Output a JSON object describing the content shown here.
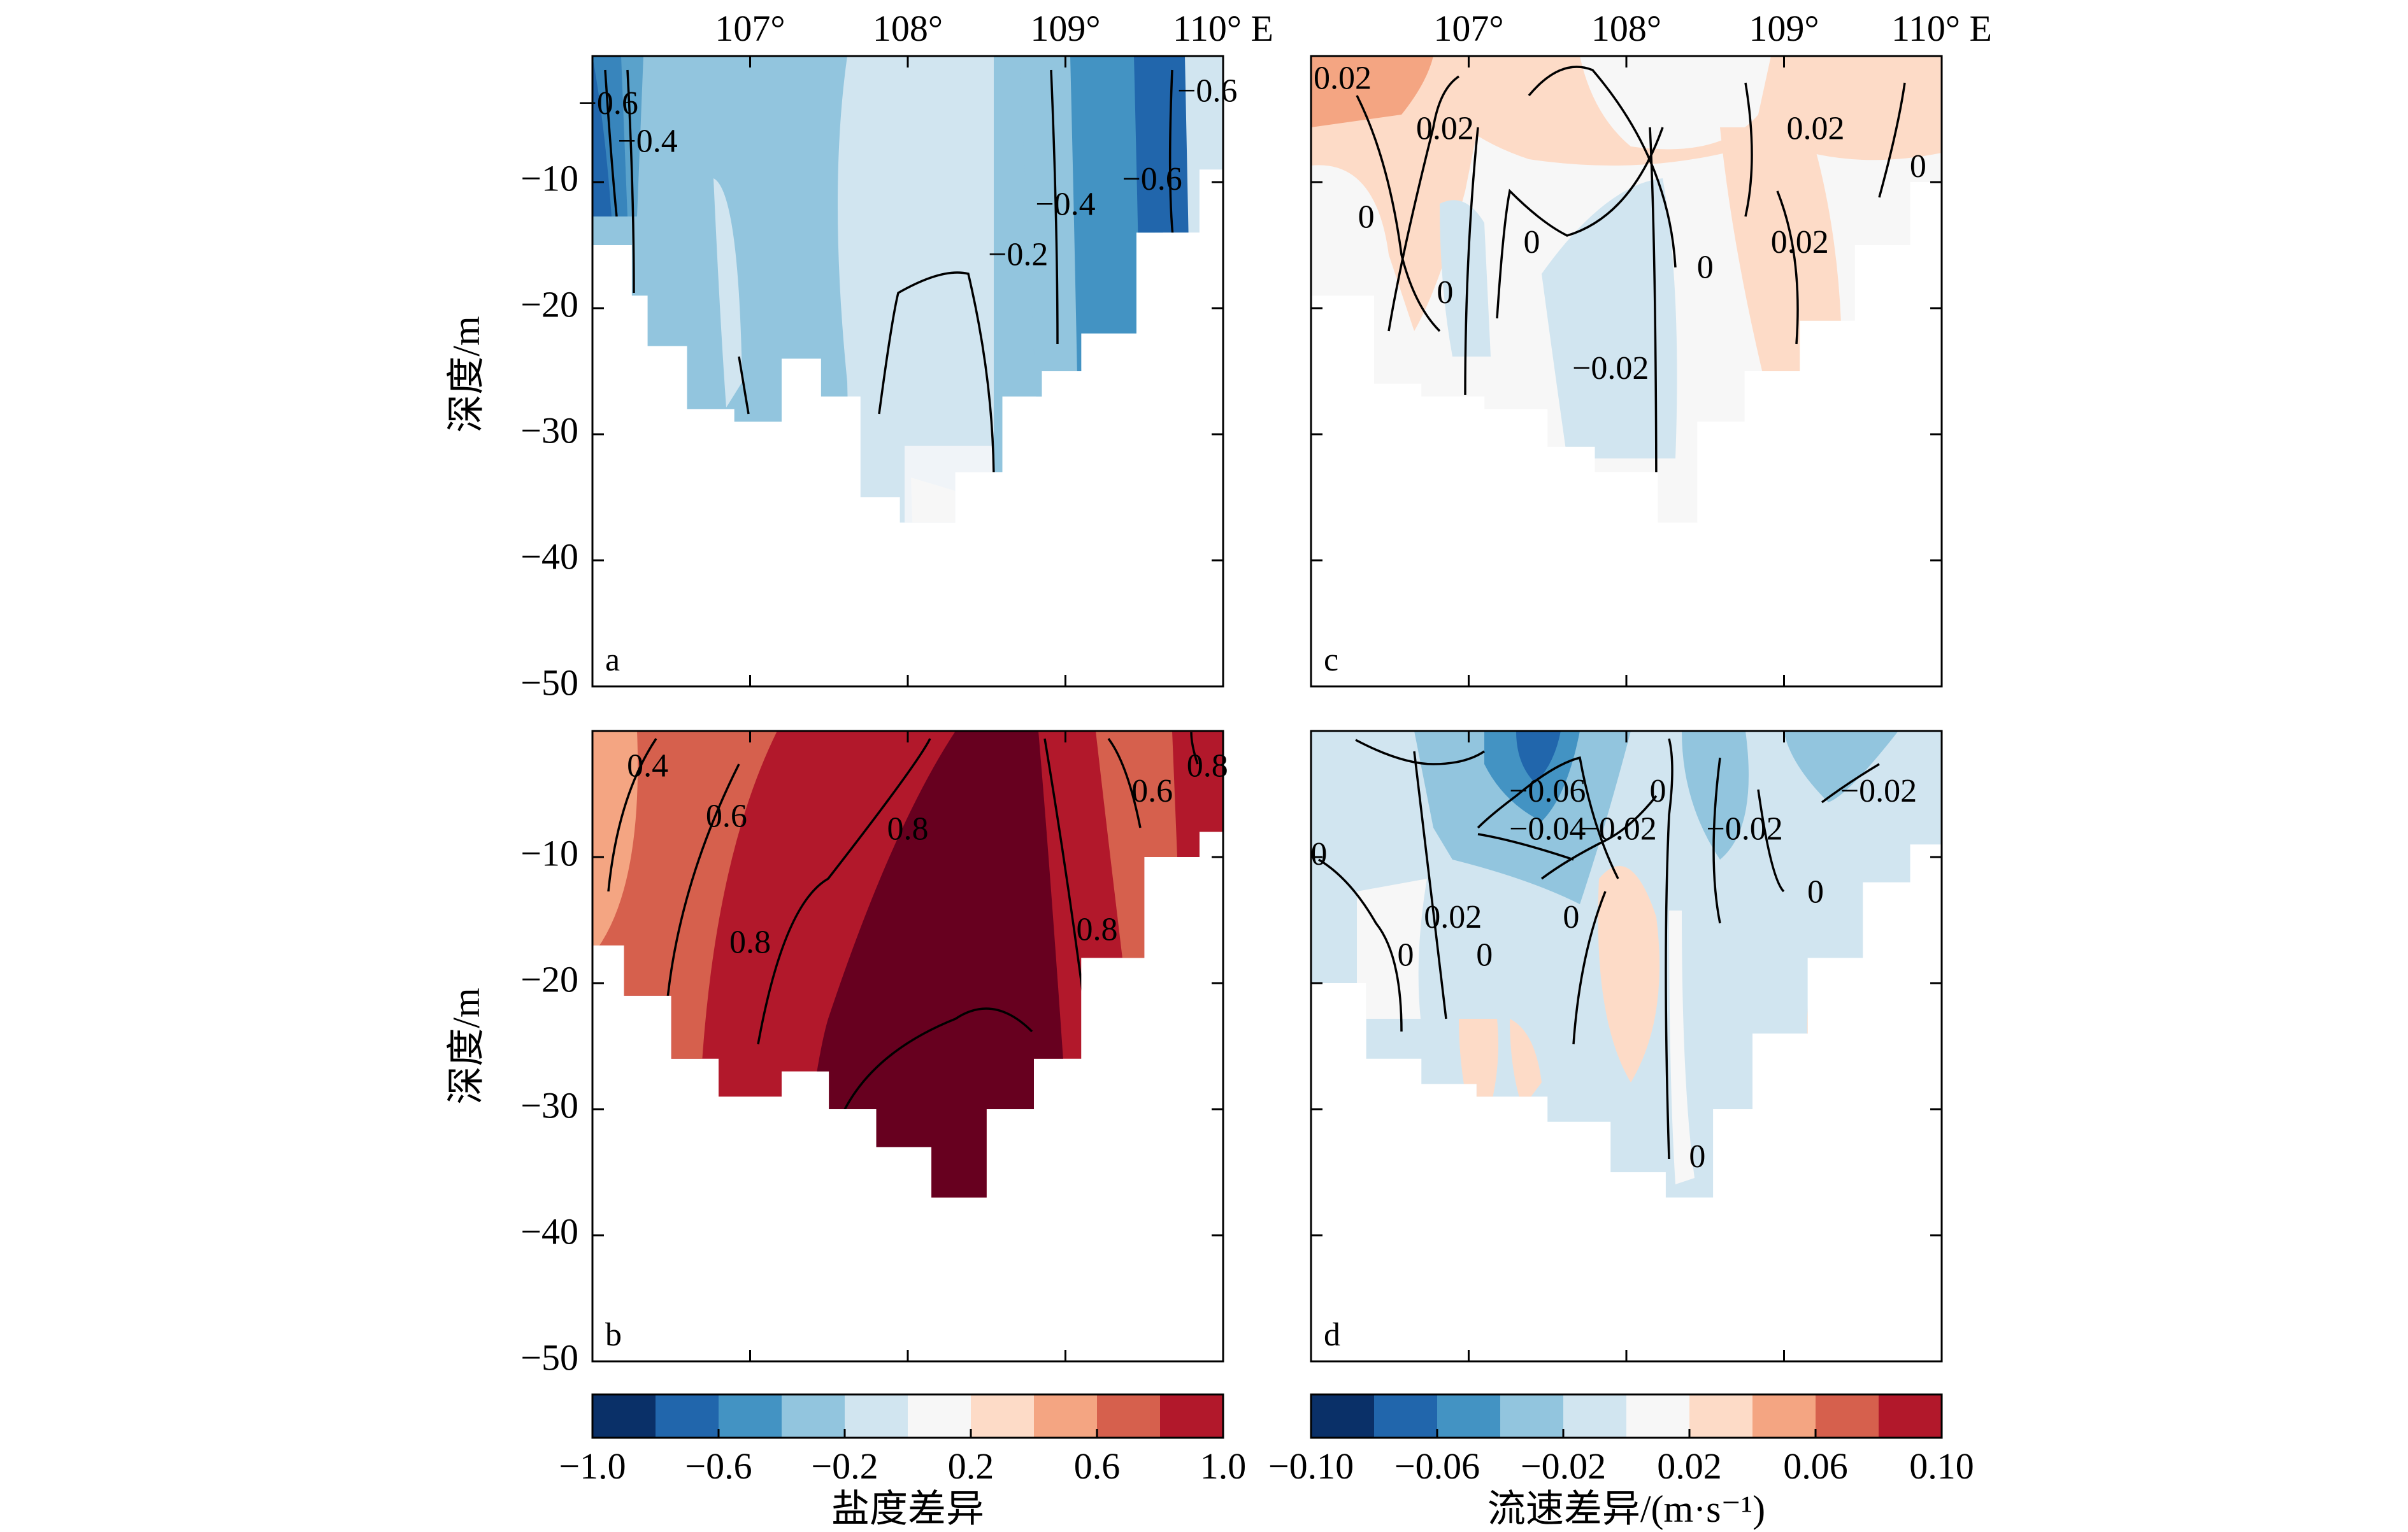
{
  "chart_data": [
    {
      "type": "heatmap",
      "panel": "a",
      "quantity": "salinity",
      "x_ticks": [
        "107°",
        "108°",
        "109°",
        "110° E"
      ],
      "y_ticks": [
        "−10",
        "−20",
        "−30",
        "−40",
        "−50"
      ],
      "ylabel": "深度/m",
      "ylim": [
        -50,
        0
      ],
      "bottom_depth": [
        [
          106.0,
          -11
        ],
        [
          106.25,
          -15
        ],
        [
          106.35,
          -19
        ],
        [
          106.6,
          -23
        ],
        [
          106.9,
          -28
        ],
        [
          107.2,
          -29
        ],
        [
          107.45,
          -24
        ],
        [
          107.7,
          -27
        ],
        [
          107.95,
          -35
        ],
        [
          108.3,
          -37
        ],
        [
          108.6,
          -33
        ],
        [
          108.85,
          -27
        ],
        [
          109.1,
          -25
        ],
        [
          109.45,
          -22
        ],
        [
          109.85,
          -14
        ],
        [
          110.0,
          -9
        ]
      ],
      "contour_labels": [
        {
          "text": "−0.6",
          "x": 106.1,
          "y": -4
        },
        {
          "text": "−0.4",
          "x": 106.35,
          "y": -7
        },
        {
          "text": "−0.2",
          "x": 108.7,
          "y": -16
        },
        {
          "text": "−0.4",
          "x": 109.0,
          "y": -12
        },
        {
          "text": "−0.6",
          "x": 109.55,
          "y": -10
        },
        {
          "text": "−0.6",
          "x": 109.9,
          "y": -3
        }
      ]
    },
    {
      "type": "heatmap",
      "panel": "b",
      "quantity": "salinity",
      "y_ticks": [
        "−10",
        "−20",
        "−30",
        "−40",
        "−50"
      ],
      "ylabel": "深度/m",
      "ylim": [
        -50,
        0
      ],
      "bottom_depth": [
        [
          106.0,
          -13
        ],
        [
          106.2,
          -17
        ],
        [
          106.5,
          -21
        ],
        [
          106.8,
          -26
        ],
        [
          107.2,
          -29
        ],
        [
          107.5,
          -27
        ],
        [
          107.8,
          -30
        ],
        [
          108.15,
          -33
        ],
        [
          108.5,
          -37
        ],
        [
          108.8,
          -30
        ],
        [
          109.1,
          -26
        ],
        [
          109.5,
          -18
        ],
        [
          109.85,
          -10
        ],
        [
          110.0,
          -8
        ]
      ],
      "contour_labels": [
        {
          "text": "0.4",
          "x": 106.35,
          "y": -3
        },
        {
          "text": "0.6",
          "x": 106.85,
          "y": -7
        },
        {
          "text": "0.8",
          "x": 108.0,
          "y": -8
        },
        {
          "text": "0.8",
          "x": 107.0,
          "y": -17
        },
        {
          "text": "0.8",
          "x": 109.2,
          "y": -16
        },
        {
          "text": "0.6",
          "x": 109.55,
          "y": -5
        },
        {
          "text": "0.8",
          "x": 109.9,
          "y": -3
        }
      ]
    },
    {
      "type": "heatmap",
      "panel": "c",
      "quantity": "velocity",
      "x_ticks": [
        "107°",
        "108°",
        "109°",
        "110° E"
      ],
      "ylim": [
        -50,
        0
      ],
      "bottom_depth": [
        [
          106.0,
          -14
        ],
        [
          106.4,
          -19
        ],
        [
          106.7,
          -26
        ],
        [
          107.1,
          -27
        ],
        [
          107.5,
          -28
        ],
        [
          107.8,
          -31
        ],
        [
          108.2,
          -33
        ],
        [
          108.45,
          -37
        ],
        [
          108.75,
          -29
        ],
        [
          109.1,
          -25
        ],
        [
          109.45,
          -21
        ],
        [
          109.8,
          -15
        ],
        [
          110.0,
          -10
        ]
      ],
      "contour_labels": [
        {
          "text": "0.02",
          "x": 106.2,
          "y": -2
        },
        {
          "text": "0.02",
          "x": 106.85,
          "y": -6
        },
        {
          "text": "0",
          "x": 106.35,
          "y": -13
        },
        {
          "text": "0",
          "x": 106.85,
          "y": -19
        },
        {
          "text": "0",
          "x": 107.4,
          "y": -15
        },
        {
          "text": "−0.02",
          "x": 107.9,
          "y": -25
        },
        {
          "text": "0",
          "x": 108.5,
          "y": -17
        },
        {
          "text": "0.02",
          "x": 109.2,
          "y": -6
        },
        {
          "text": "0.02",
          "x": 109.1,
          "y": -15
        },
        {
          "text": "0",
          "x": 109.85,
          "y": -9
        }
      ]
    },
    {
      "type": "heatmap",
      "panel": "d",
      "quantity": "velocity",
      "ylim": [
        -50,
        0
      ],
      "bottom_depth": [
        [
          106.0,
          -11
        ],
        [
          106.35,
          -20
        ],
        [
          106.7,
          -26
        ],
        [
          107.05,
          -28
        ],
        [
          107.5,
          -29
        ],
        [
          107.9,
          -31
        ],
        [
          108.25,
          -35
        ],
        [
          108.55,
          -37
        ],
        [
          108.8,
          -30
        ],
        [
          109.15,
          -24
        ],
        [
          109.5,
          -18
        ],
        [
          109.8,
          -12
        ],
        [
          110.0,
          -9
        ]
      ],
      "contour_labels": [
        {
          "text": "0",
          "x": 106.05,
          "y": -10
        },
        {
          "text": "−0.06",
          "x": 107.5,
          "y": -5
        },
        {
          "text": "−0.04",
          "x": 107.5,
          "y": -8
        },
        {
          "text": "−0.02",
          "x": 107.95,
          "y": -8
        },
        {
          "text": "0",
          "x": 108.2,
          "y": -5
        },
        {
          "text": "0.02",
          "x": 106.9,
          "y": -15
        },
        {
          "text": "0",
          "x": 106.6,
          "y": -18
        },
        {
          "text": "0",
          "x": 107.1,
          "y": -18
        },
        {
          "text": "0",
          "x": 107.65,
          "y": -15
        },
        {
          "text": "−0.02",
          "x": 108.75,
          "y": -8
        },
        {
          "text": "0",
          "x": 109.2,
          "y": -13
        },
        {
          "text": "−0.02",
          "x": 109.6,
          "y": -5
        },
        {
          "text": "0",
          "x": 108.45,
          "y": -34
        }
      ]
    }
  ],
  "panel_letters": {
    "a": "a",
    "b": "b",
    "c": "c",
    "d": "d"
  },
  "colorbars": {
    "salinity": {
      "ticks": [
        "−1.0",
        "−0.6",
        "−0.2",
        "0.2",
        "0.6",
        "1.0"
      ],
      "label": "盐度差异",
      "colors": [
        "#0a3068",
        "#2166ac",
        "#4393c3",
        "#92c5de",
        "#d1e5f0",
        "#f7f7f7",
        "#fddbc7",
        "#f4a582",
        "#d6604d",
        "#b2182b"
      ]
    },
    "velocity": {
      "ticks": [
        "−0.10",
        "−0.06",
        "−0.02",
        "0.02",
        "0.06",
        "0.10"
      ],
      "label": "流速差异/(m·s⁻¹)",
      "colors": [
        "#0a3068",
        "#2166ac",
        "#4393c3",
        "#92c5de",
        "#d1e5f0",
        "#f7f7f7",
        "#fddbc7",
        "#f4a582",
        "#d6604d",
        "#b2182b"
      ]
    }
  },
  "extra_colors": {
    "deep_red": "#67001f"
  }
}
